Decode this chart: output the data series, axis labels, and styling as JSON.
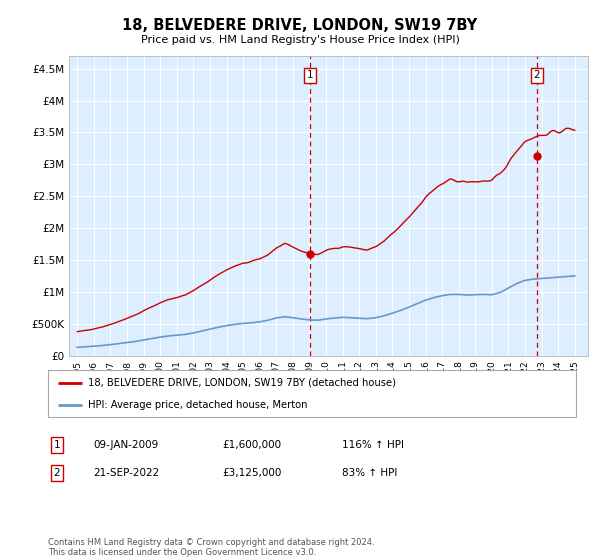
{
  "title": "18, BELVEDERE DRIVE, LONDON, SW19 7BY",
  "subtitle": "Price paid vs. HM Land Registry's House Price Index (HPI)",
  "ylabel_ticks": [
    "£0",
    "£500K",
    "£1M",
    "£1.5M",
    "£2M",
    "£2.5M",
    "£3M",
    "£3.5M",
    "£4M",
    "£4.5M"
  ],
  "ytick_values": [
    0,
    500000,
    1000000,
    1500000,
    2000000,
    2500000,
    3000000,
    3500000,
    4000000,
    4500000
  ],
  "ylim": [
    0,
    4700000
  ],
  "legend_line1": "18, BELVEDERE DRIVE, LONDON, SW19 7BY (detached house)",
  "legend_line2": "HPI: Average price, detached house, Merton",
  "annotation1_label": "1",
  "annotation1_date": "09-JAN-2009",
  "annotation1_price": "£1,600,000",
  "annotation1_hpi": "116% ↑ HPI",
  "annotation2_label": "2",
  "annotation2_date": "21-SEP-2022",
  "annotation2_price": "£3,125,000",
  "annotation2_hpi": "83% ↑ HPI",
  "footnote": "Contains HM Land Registry data © Crown copyright and database right 2024.\nThis data is licensed under the Open Government Licence v3.0.",
  "red_color": "#cc0000",
  "blue_color": "#6699cc",
  "background_color": "#ddeeff",
  "sale1_x": 2009.03,
  "sale1_y": 1600000,
  "sale2_x": 2022.72,
  "sale2_y": 3125000,
  "xlim_left": 1994.5,
  "xlim_right": 2025.8
}
